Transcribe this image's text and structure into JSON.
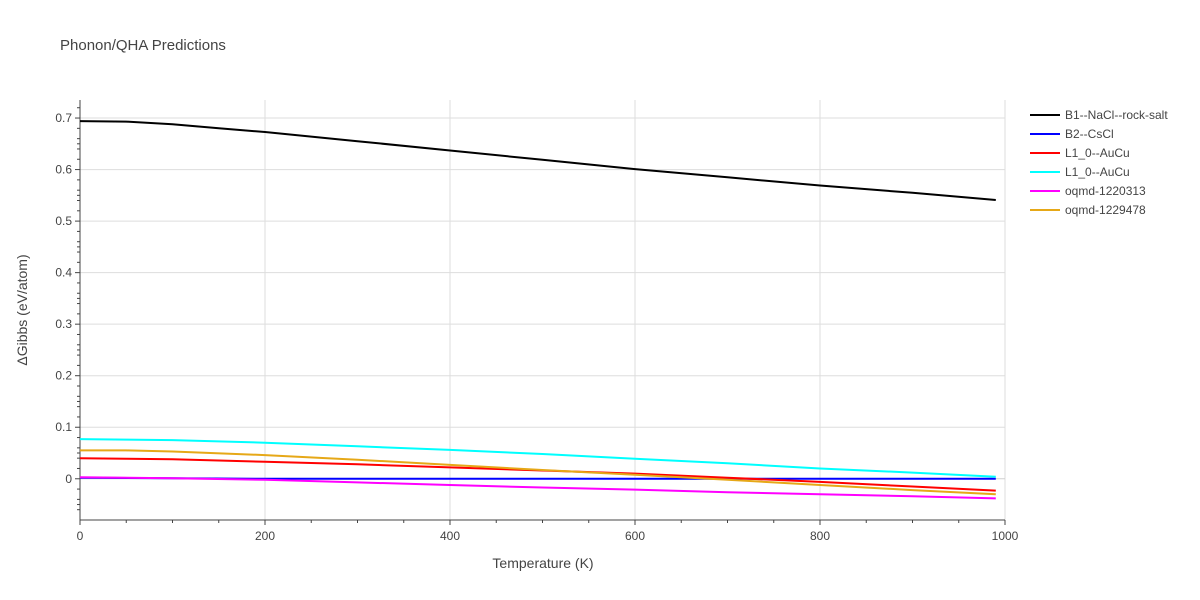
{
  "chart_data": {
    "type": "line",
    "title": "Phonon/QHA Predictions",
    "xlabel": "Temperature (K)",
    "ylabel": "ΔGibbs (eV/atom)",
    "xlim": [
      0,
      1000
    ],
    "ylim": [
      -0.08,
      0.735
    ],
    "x_ticks": [
      0,
      200,
      400,
      600,
      800,
      1000
    ],
    "y_ticks": [
      0,
      0.1,
      0.2,
      0.3,
      0.4,
      0.5,
      0.6,
      0.7
    ],
    "grid": true,
    "legend_position": "top-right",
    "series": [
      {
        "name": "B1--NaCl--rock-salt",
        "color": "#000000",
        "x": [
          0,
          50,
          100,
          150,
          200,
          300,
          400,
          500,
          600,
          700,
          800,
          900,
          990
        ],
        "y": [
          0.694,
          0.693,
          0.688,
          0.68,
          0.673,
          0.655,
          0.637,
          0.619,
          0.601,
          0.585,
          0.569,
          0.555,
          0.541
        ]
      },
      {
        "name": "B2--CsCl",
        "color": "#0000ff",
        "x": [
          0,
          100,
          200,
          300,
          400,
          500,
          600,
          700,
          800,
          900,
          990
        ],
        "y": [
          0.002,
          0.001,
          0.0,
          0.0,
          0.0,
          0.0,
          0.0,
          0.0,
          0.0,
          0.0,
          0.0
        ]
      },
      {
        "name": "L1_0--AuCu",
        "color": "#ff0000",
        "x": [
          0,
          50,
          100,
          200,
          300,
          400,
          500,
          600,
          700,
          800,
          900,
          990
        ],
        "y": [
          0.04,
          0.039,
          0.038,
          0.033,
          0.028,
          0.022,
          0.016,
          0.01,
          0.002,
          -0.006,
          -0.015,
          -0.023
        ]
      },
      {
        "name": "L1_0--AuCu",
        "color": "#00ffff",
        "x": [
          0,
          50,
          100,
          200,
          300,
          400,
          500,
          600,
          700,
          800,
          900,
          990
        ],
        "y": [
          0.077,
          0.076,
          0.075,
          0.07,
          0.063,
          0.056,
          0.048,
          0.039,
          0.03,
          0.02,
          0.012,
          0.004
        ]
      },
      {
        "name": "oqmd-1220313",
        "color": "#ff00ff",
        "x": [
          0,
          100,
          200,
          300,
          400,
          500,
          600,
          700,
          800,
          900,
          990
        ],
        "y": [
          0.003,
          0.001,
          -0.002,
          -0.007,
          -0.012,
          -0.017,
          -0.021,
          -0.026,
          -0.03,
          -0.034,
          -0.038
        ]
      },
      {
        "name": "oqmd-1229478",
        "color": "#e6a817",
        "x": [
          0,
          50,
          100,
          200,
          300,
          400,
          500,
          600,
          700,
          800,
          900,
          990
        ],
        "y": [
          0.055,
          0.055,
          0.053,
          0.046,
          0.037,
          0.027,
          0.017,
          0.008,
          -0.002,
          -0.012,
          -0.022,
          -0.03
        ]
      }
    ]
  }
}
